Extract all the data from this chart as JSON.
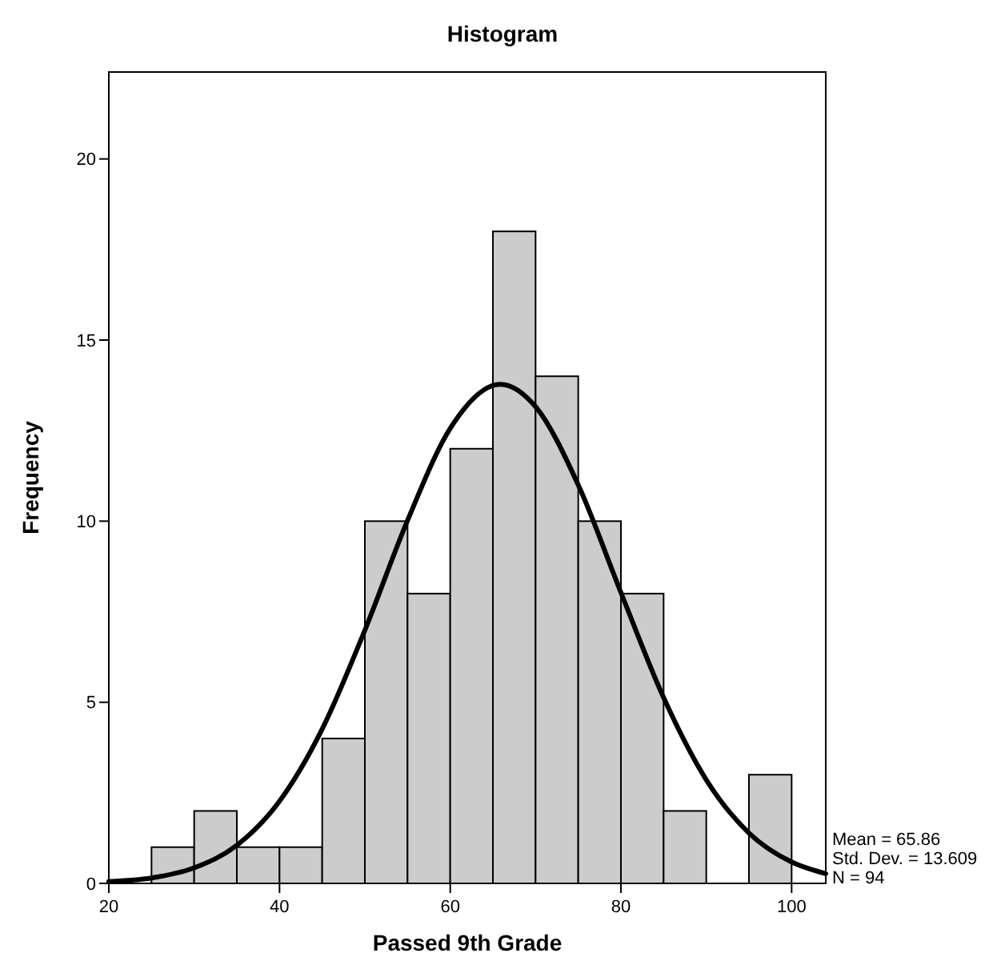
{
  "chart_data": {
    "type": "histogram",
    "title": "Histogram",
    "xlabel": "Passed 9th Grade",
    "ylabel": "Frequency",
    "bins": [
      25,
      30,
      35,
      40,
      45,
      50,
      55,
      60,
      65,
      70,
      75,
      80,
      85,
      90,
      95,
      100
    ],
    "values": [
      1,
      2,
      1,
      1,
      4,
      10,
      8,
      12,
      18,
      14,
      10,
      8,
      2,
      0,
      3
    ],
    "color": "#cccccc",
    "series": [
      {
        "type": "line",
        "color": "#000000",
        "x": [
          20,
          25,
          30,
          35,
          40,
          45,
          50,
          55,
          60,
          65.86,
          70,
          75,
          80,
          85,
          90,
          95,
          100,
          104
        ],
        "values": [
          0.05,
          0.15,
          0.43,
          1.05,
          2.27,
          4.26,
          6.99,
          10.02,
          12.56,
          13.78,
          13.16,
          11.0,
          8.03,
          5.13,
          2.86,
          1.39,
          0.59,
          0.27
        ]
      }
    ],
    "xlim": [
      20,
      104
    ],
    "ylim": [
      0,
      22.4
    ],
    "xticks": [
      20,
      40,
      60,
      80,
      100
    ],
    "yticks": [
      0,
      5,
      10,
      15,
      20
    ],
    "grid": false,
    "annotations": [
      "Mean = 65.86",
      "Std. Dev. = 13.609",
      "N = 94"
    ]
  }
}
